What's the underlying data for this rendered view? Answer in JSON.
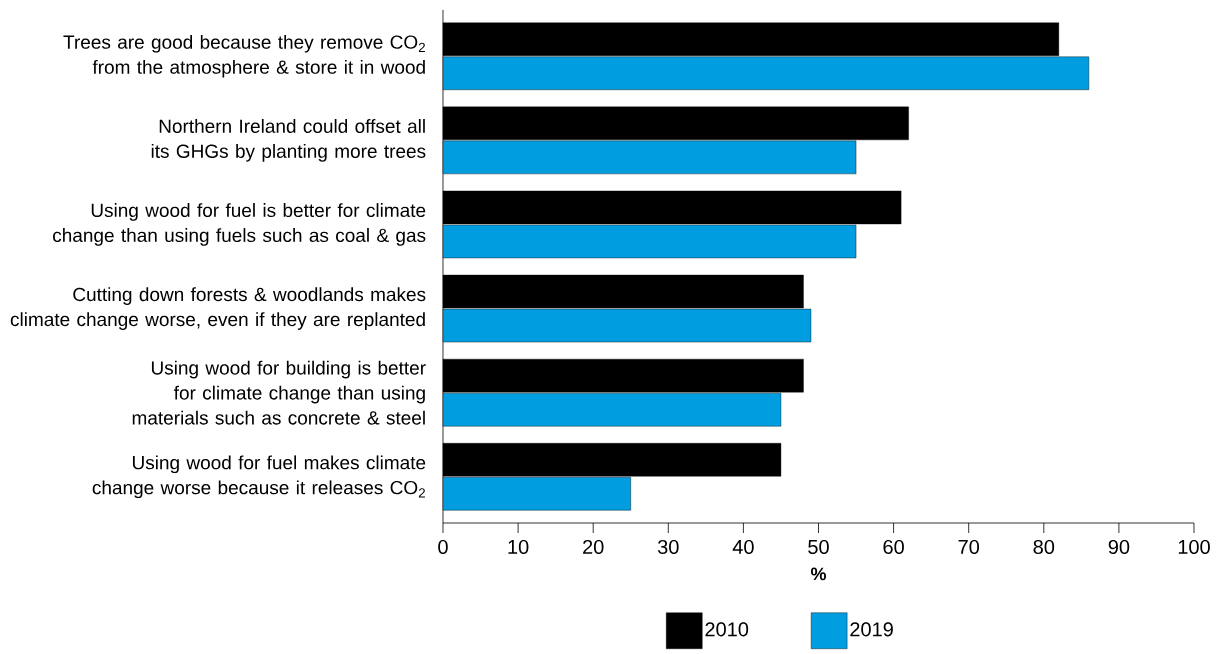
{
  "chart_data": {
    "type": "bar",
    "orientation": "horizontal",
    "xlabel": "%",
    "legend": "bottom",
    "categories": [
      "Trees are good because they remove CO$_{2}$ from the atmosphere & store it in wood",
      "Northern Ireland could offset all its GHGs by planting more trees",
      "Using wood for fuel is better for climate change than using fuels such as coal & gas",
      "Cutting down forests & woodlands makes climate change worse, even if they are replanted",
      "Using wood for building is better for climate change than using materials such as concrete & steel",
      "Using wood for fuel makes climate change worse because it releases CO$_{2}$"
    ],
    "series": [
      {
        "name": "2010",
        "color": "#000000",
        "values": [
          82,
          62,
          61,
          48,
          48,
          45
        ]
      },
      {
        "name": "2019",
        "color": "#009ee0",
        "values": [
          86,
          55,
          55,
          49,
          45,
          25
        ]
      }
    ],
    "xlim": [
      0,
      100
    ],
    "xticks": [
      0,
      10,
      20,
      30,
      40,
      50,
      60,
      70,
      80,
      90,
      100
    ]
  }
}
